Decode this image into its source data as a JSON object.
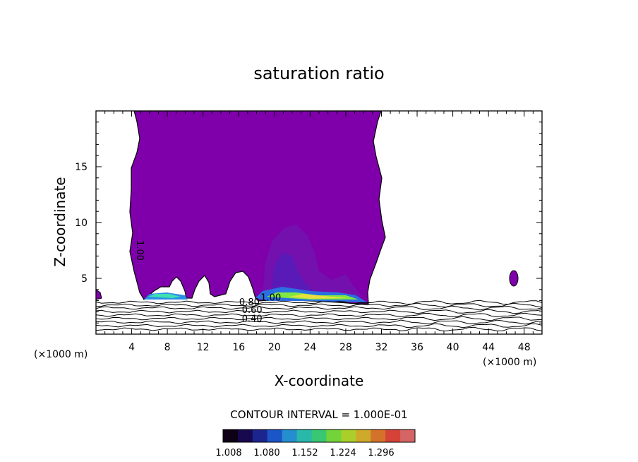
{
  "chart_data": {
    "type": "contour",
    "title": "saturation ratio",
    "xlabel": "X-coordinate",
    "ylabel": "Z-coordinate",
    "x_unit_left": "(×1000 m)",
    "x_unit_right": "(×1000 m)",
    "xlim": [
      0,
      50
    ],
    "ylim": [
      0,
      20
    ],
    "x_ticks": [
      4,
      8,
      12,
      16,
      20,
      24,
      28,
      32,
      36,
      40,
      44,
      48
    ],
    "y_ticks": [
      5,
      10,
      15
    ],
    "contour_interval_label": "CONTOUR INTERVAL = 1.000E-01",
    "contour_labels": [
      {
        "text": "1.00",
        "x": 4.6,
        "z": 7.5,
        "rotated": true
      },
      {
        "text": "1.00",
        "x": 19.6,
        "z": 3.0
      },
      {
        "text": "0.80",
        "x": 17.2,
        "z": 2.6
      },
      {
        "text": "0.60",
        "x": 17.5,
        "z": 1.9
      },
      {
        "text": "0.40",
        "x": 17.5,
        "z": 1.1
      }
    ],
    "colorbar": {
      "ticks": [
        "1.008",
        "1.080",
        "1.152",
        "1.224",
        "1.296"
      ],
      "colors": [
        "#100018",
        "#1a0a5a",
        "#1f2aa0",
        "#2060e0",
        "#2aa0e8",
        "#30d0c0",
        "#40e080",
        "#80ee40",
        "#c0e830",
        "#e8c030",
        "#f08030",
        "#f04a40",
        "#f07070"
      ]
    },
    "colors": {
      "saturated_region": "#7f00aa",
      "supersaturated_shade": "#6a10b0",
      "contour_line": "#000000"
    }
  }
}
